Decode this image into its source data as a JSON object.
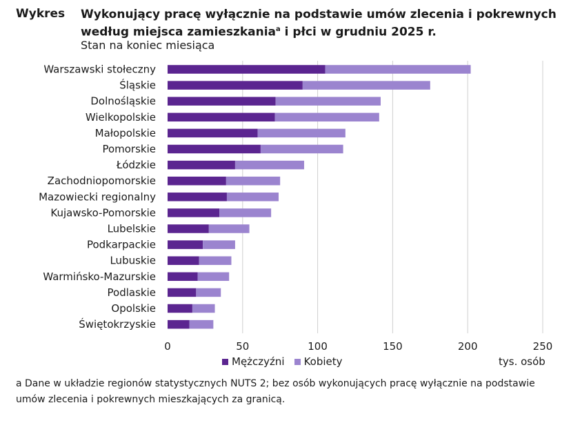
{
  "header": {
    "label": "Wykres",
    "title": "Wykonujący pracę wyłącznie na podstawie umów zlecenia i pokrewnych według miejsca zamieszkania",
    "title_sup": "a",
    "title_tail": " i płci w grudniu 2025 r.",
    "subtitle": "Stan na koniec miesiąca"
  },
  "colors": {
    "men": "#5b2590",
    "women": "#9b84cf",
    "grid": "#cfcfcf"
  },
  "chart_data": {
    "type": "bar",
    "orientation": "horizontal",
    "stacked": true,
    "categories": [
      "Warszawski stołeczny",
      "Śląskie",
      "Dolnośląskie",
      "Wielkopolskie",
      "Małopolskie",
      "Pomorskie",
      "Łódzkie",
      "Zachodniopomorskie",
      "Mazowiecki regionalny",
      "Kujawsko-Pomorskie",
      "Lubelskie",
      "Podkarpackie",
      "Lubuskie",
      "Warmińsko-Mazurskie",
      "Podlaskie",
      "Opolskie",
      "Świętokrzyskie"
    ],
    "series": [
      {
        "name": "Mężczyźni",
        "values": [
          105,
          90,
          72,
          71.5,
          60,
          62,
          45,
          39,
          39.5,
          34.5,
          27.5,
          23.5,
          21,
          20,
          19,
          16.5,
          14.5
        ]
      },
      {
        "name": "Kobiety",
        "values": [
          97,
          85,
          70,
          69.5,
          58.5,
          55,
          46,
          36,
          34.5,
          34.5,
          27,
          21.5,
          21.5,
          21,
          16.5,
          15,
          16
        ]
      }
    ],
    "xlim": [
      0,
      250
    ],
    "xticks": [
      0,
      50,
      100,
      150,
      200,
      250
    ],
    "xticklabels": [
      "0",
      "50",
      "100",
      "150",
      "200",
      "250"
    ],
    "xlabel": "tys. osób",
    "grid": true,
    "legend_position": "bottom"
  },
  "footnote": "a Dane w układzie regionów statystycznych NUTS 2; bez osób wykonujących pracę wyłącznie na podstawie umów zlecenia i pokrewnych mieszkających za granicą."
}
